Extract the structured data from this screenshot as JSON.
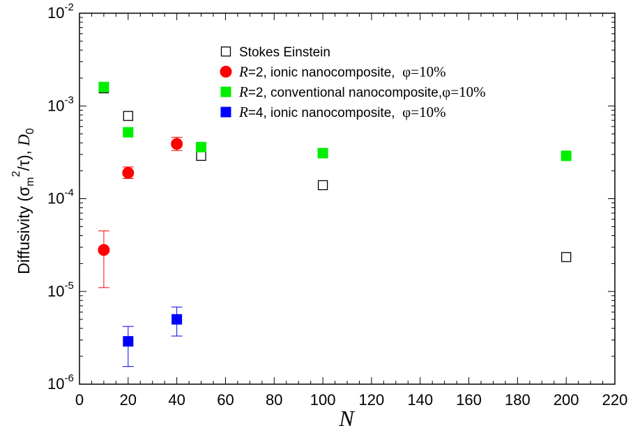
{
  "chart_data": {
    "type": "scatter",
    "xlabel": "N",
    "ylabel": {
      "prefix": "Diffusivity (σ",
      "sub": "m",
      "sup": "2",
      "mid": "/τ), ",
      "symbol": "D",
      "symbol_sub": "0"
    },
    "xlim": [
      0,
      220
    ],
    "ylim": [
      1e-06,
      0.01
    ],
    "y_scale": "log",
    "x_ticks": [
      0,
      20,
      40,
      60,
      80,
      100,
      120,
      140,
      160,
      180,
      200,
      220
    ],
    "y_ticks": [
      {
        "value": 1e-06,
        "base": "10",
        "exp": "-6"
      },
      {
        "value": 1e-05,
        "base": "10",
        "exp": "-5"
      },
      {
        "value": 0.0001,
        "base": "10",
        "exp": "-4"
      },
      {
        "value": 0.001,
        "base": "10",
        "exp": "-3"
      },
      {
        "value": 0.01,
        "base": "10",
        "exp": "-2"
      }
    ],
    "grid": false,
    "legend_position": "top-right",
    "series": [
      {
        "key": "stokes",
        "legend": {
          "plain": "Stokes Einstein"
        },
        "marker": "open-square",
        "color": "#000000",
        "points": [
          {
            "x": 10,
            "y": 0.00155
          },
          {
            "x": 20,
            "y": 0.00078
          },
          {
            "x": 50,
            "y": 0.00029
          },
          {
            "x": 100,
            "y": 0.00014
          },
          {
            "x": 200,
            "y": 2.35e-05
          }
        ]
      },
      {
        "key": "r2-ionic",
        "legend": {
          "italic": "R",
          "text": "=2, ionic nanocomposite,  ",
          "phi": "φ=10%"
        },
        "marker": "circle",
        "color": "#ff0000",
        "points": [
          {
            "x": 10,
            "y": 2.8e-05,
            "err_low": 1.1e-05,
            "err_high": 4.5e-05
          },
          {
            "x": 20,
            "y": 0.00019,
            "err_low": 0.000165,
            "err_high": 0.00022
          },
          {
            "x": 40,
            "y": 0.00039,
            "err_low": 0.00033,
            "err_high": 0.00046
          }
        ]
      },
      {
        "key": "r2-conventional",
        "legend": {
          "italic": "R",
          "text": "=2, conventional nanocomposite,",
          "phi": "φ=10%"
        },
        "marker": "square",
        "color": "#00ee00",
        "points": [
          {
            "x": 10,
            "y": 0.0016
          },
          {
            "x": 20,
            "y": 0.00052
          },
          {
            "x": 50,
            "y": 0.00036
          },
          {
            "x": 100,
            "y": 0.00031
          },
          {
            "x": 200,
            "y": 0.00029
          }
        ]
      },
      {
        "key": "r4-ionic",
        "legend": {
          "italic": "R",
          "text": "=4, ionic nanocomposite,  ",
          "phi": "φ=10%"
        },
        "marker": "square",
        "color": "#0000ff",
        "points": [
          {
            "x": 20,
            "y": 2.9e-06,
            "err_low": 1.55e-06,
            "err_high": 4.2e-06
          },
          {
            "x": 40,
            "y": 5e-06,
            "err_low": 3.3e-06,
            "err_high": 6.8e-06
          }
        ]
      }
    ]
  }
}
